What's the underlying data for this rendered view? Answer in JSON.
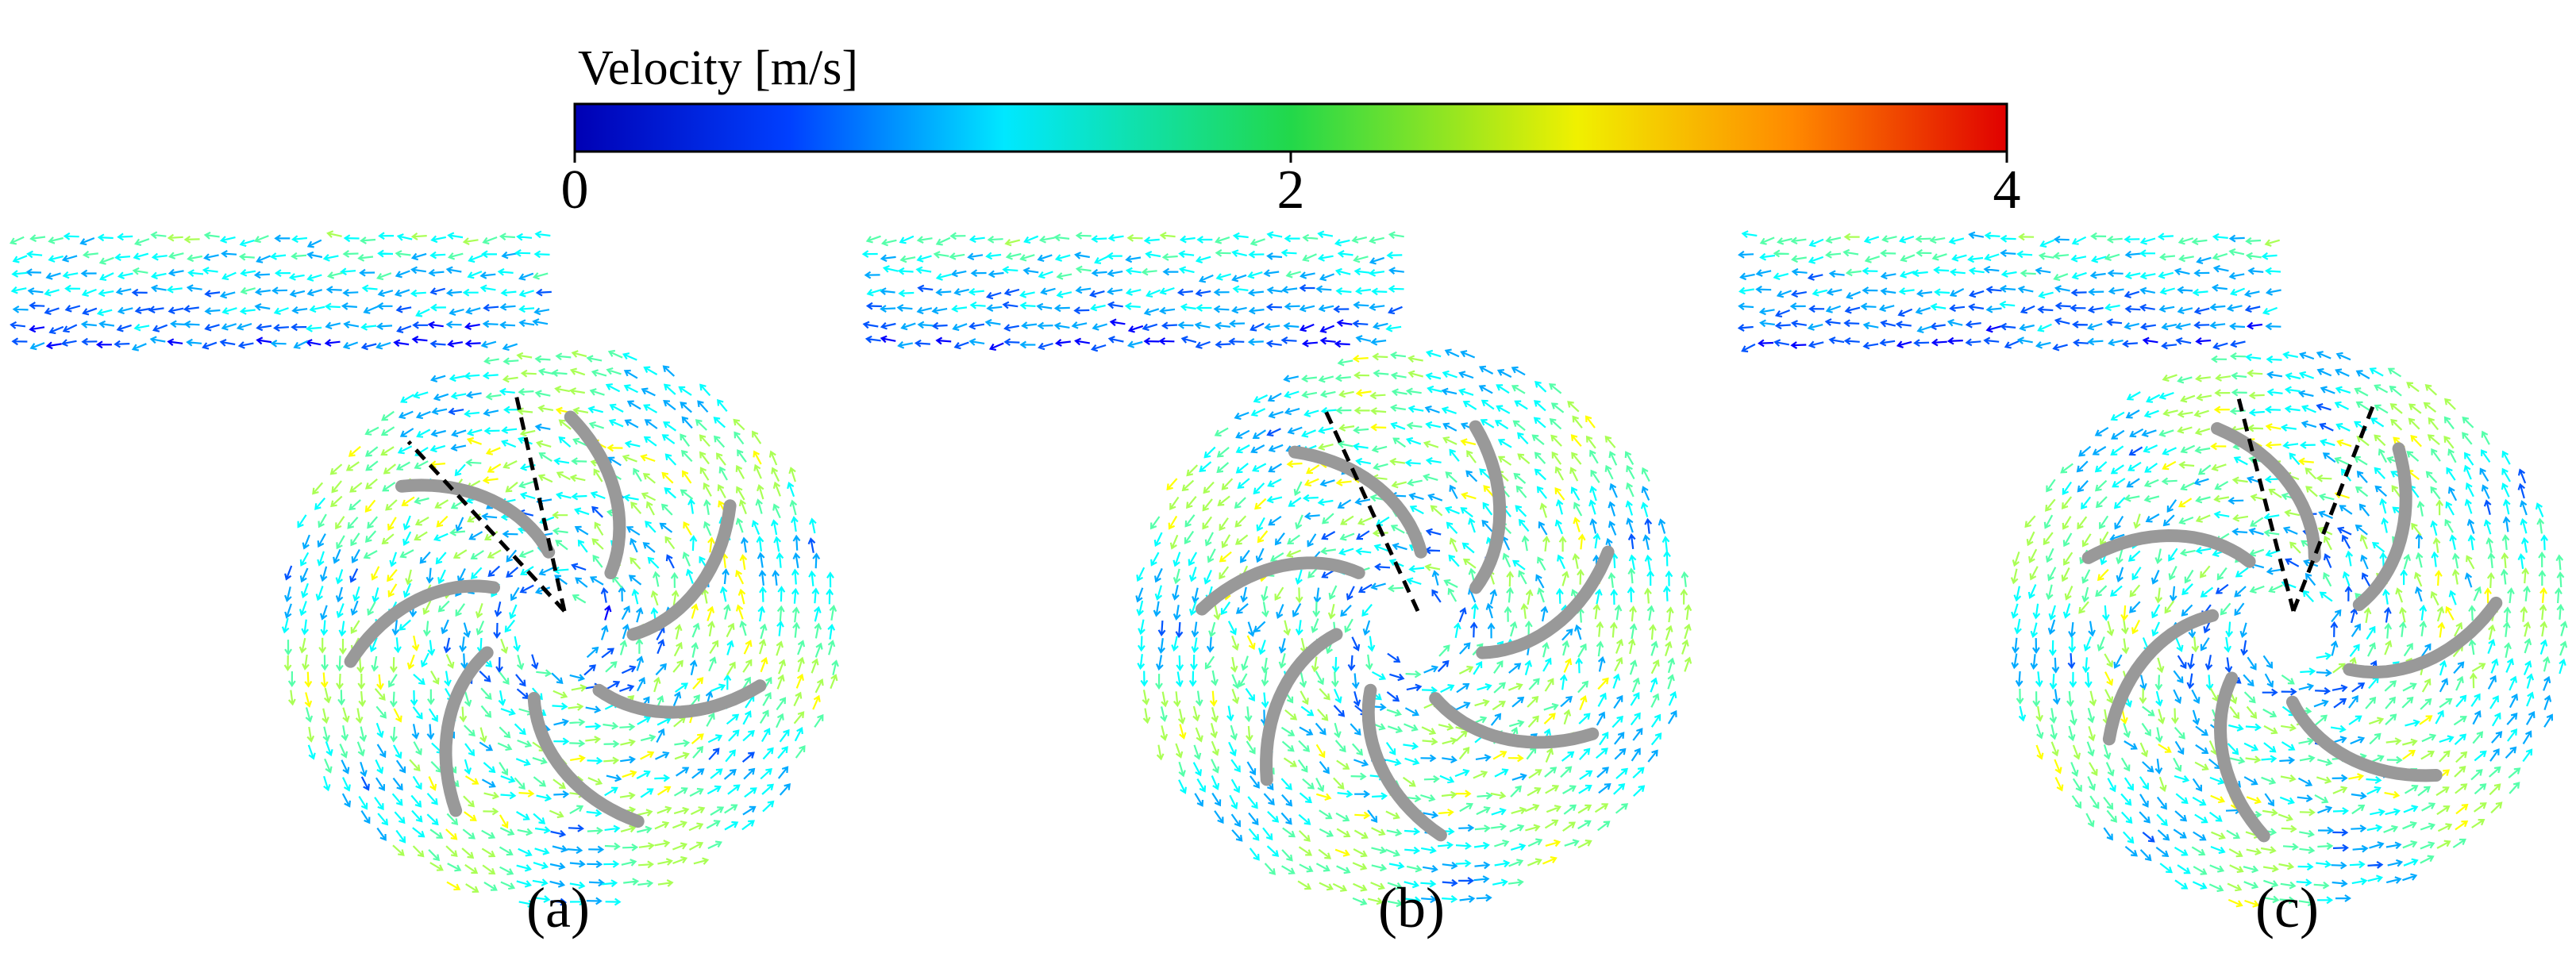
{
  "colorbar": {
    "title": "Velocity [m/s]",
    "lim": [
      0,
      4
    ],
    "ticks": [
      0,
      2,
      4
    ]
  },
  "panels": [
    {
      "label": "(a)"
    },
    {
      "label": "(b)"
    },
    {
      "label": "(c)"
    }
  ]
}
